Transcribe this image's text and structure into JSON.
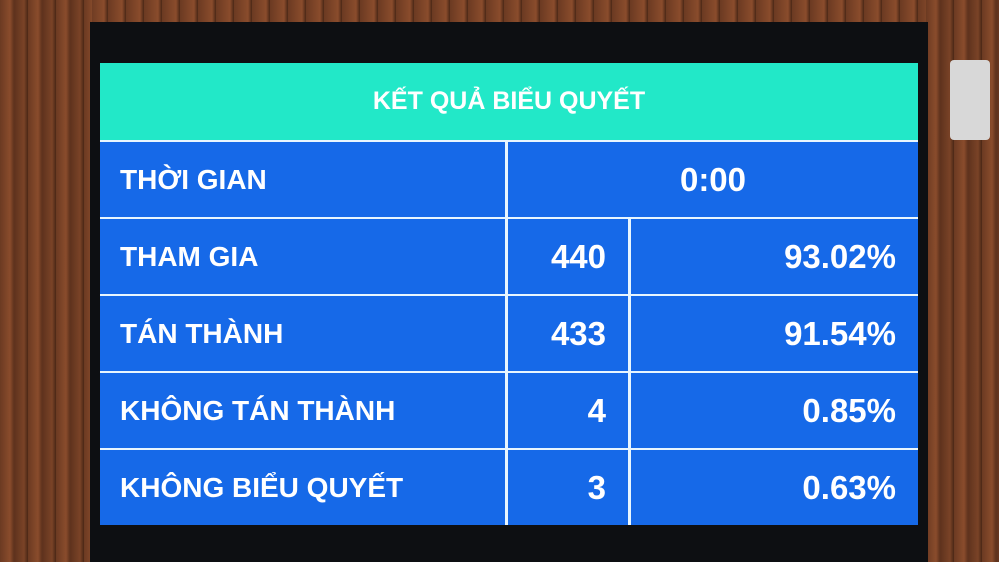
{
  "title": "KẾT QUẢ BIỂU QUYẾT",
  "time": {
    "label": "THỜI GIAN",
    "value": "0:00"
  },
  "rows": [
    {
      "label": "THAM GIA",
      "count": "440",
      "percent": "93.02%"
    },
    {
      "label": "TÁN THÀNH",
      "count": "433",
      "percent": "91.54%"
    },
    {
      "label": "KHÔNG TÁN THÀNH",
      "count": "4",
      "percent": "0.85%"
    },
    {
      "label": "KHÔNG BIỂU QUYẾT",
      "count": "3",
      "percent": "0.63%"
    }
  ],
  "colors": {
    "header": "#22e8c8",
    "cell": "#1669e8",
    "text": "#ffffff"
  }
}
